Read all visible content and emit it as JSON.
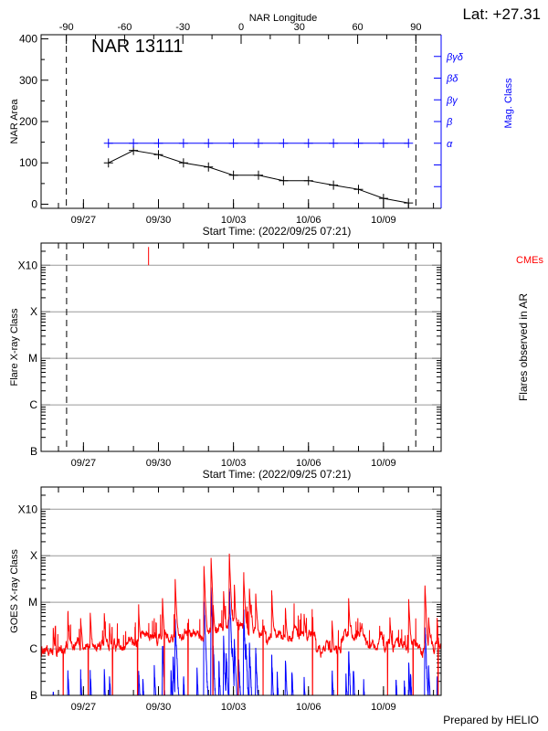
{
  "header": {
    "lat_label": "Lat: +27.31",
    "region_label": "NAR 13111",
    "prepared_by": "Prepared by HELIO"
  },
  "colors": {
    "area": "#000000",
    "mag_class": "#0000ff",
    "goes_long": "#ff0000",
    "goes_short": "#0000ff",
    "cme": "#ff0000",
    "grid": "#999999"
  },
  "chart_data": [
    {
      "type": "line",
      "xlabel": "Start Time: (2022/09/25 07:21)",
      "x_start": "2022-09-25T07:21",
      "x_end": "2022-10-11T07:21",
      "x_tick_labels": [
        "09/27",
        "09/30",
        "10/03",
        "10/06",
        "10/09"
      ],
      "x_tick_dates": [
        "2022-09-27",
        "2022-09-30",
        "2022-10-03",
        "2022-10-06",
        "2022-10-09"
      ],
      "top_xlabel": "NAR Longitude",
      "top_xlim": [
        -103,
        103
      ],
      "top_x_ticks": [
        -90,
        -60,
        -30,
        0,
        30,
        60,
        90
      ],
      "limb_longitudes": [
        -90,
        90
      ],
      "ylabel": "NAR Area",
      "ylim": [
        -10,
        410
      ],
      "y_ticks": [
        0,
        100,
        200,
        300,
        400
      ],
      "y2label": "Mag. Class",
      "y2_tick_labels": [
        "",
        "",
        "α",
        "β",
        "βγ",
        "βδ",
        "βγδ"
      ],
      "y2lim": [
        -1,
        7
      ],
      "series": [
        {
          "x": [
            "2022-09-28",
            "2022-09-29",
            "2022-09-30",
            "2022-10-01",
            "2022-10-02",
            "2022-10-03",
            "2022-10-04",
            "2022-10-05",
            "2022-10-06",
            "2022-10-07",
            "2022-10-08",
            "2022-10-09",
            "2022-10-10"
          ],
          "values": [
            100,
            130,
            120,
            100,
            90,
            70,
            70,
            57,
            57,
            46,
            36,
            14,
            3
          ]
        },
        {
          "axis": "y2",
          "x": [
            "2022-09-28",
            "2022-09-29",
            "2022-09-30",
            "2022-10-01",
            "2022-10-02",
            "2022-10-03",
            "2022-10-04",
            "2022-10-05",
            "2022-10-06",
            "2022-10-07",
            "2022-10-08",
            "2022-10-09",
            "2022-10-10"
          ],
          "values": [
            "α",
            "α",
            "α",
            "α",
            "α",
            "α",
            "α",
            "α",
            "α",
            "α",
            "α",
            "α",
            "α"
          ]
        }
      ]
    },
    {
      "type": "scatter",
      "xlabel": "Start Time: (2022/09/25 07:21)",
      "x_start": "2022-09-25T07:21",
      "x_end": "2022-10-11T07:21",
      "x_tick_labels": [
        "09/27",
        "09/30",
        "10/03",
        "10/06",
        "10/09"
      ],
      "x_tick_dates": [
        "2022-09-27",
        "2022-09-30",
        "2022-10-03",
        "2022-10-06",
        "2022-10-09"
      ],
      "ylabel": "Flare X-ray Class",
      "y2label": "Flares observed in AR",
      "y_scale": "log",
      "ylim": [
        1e-07,
        0.003
      ],
      "y_tick_labels": [
        "B",
        "C",
        "M",
        "X",
        "X10"
      ],
      "y_tick_values": [
        1e-07,
        1e-06,
        1e-05,
        0.0001,
        0.001
      ],
      "grid": true,
      "cme_label": "CMEs",
      "cmes": [
        "2022-09-29T14:30"
      ],
      "limb_times": [
        "2022-09-26T07:50",
        "2022-10-10T07:00"
      ],
      "flares": []
    },
    {
      "type": "line",
      "xlabel": "",
      "x_start": "2022-09-25T07:21",
      "x_end": "2022-10-11T07:21",
      "x_tick_labels": [
        "09/27",
        "09/30",
        "10/03",
        "10/06",
        "10/09"
      ],
      "x_tick_dates": [
        "2022-09-27",
        "2022-09-30",
        "2022-10-03",
        "2022-10-06",
        "2022-10-09"
      ],
      "ylabel": "GOES X-ray Class",
      "y_scale": "log",
      "ylim": [
        1e-07,
        0.003
      ],
      "y_tick_labels": [
        "B",
        "C",
        "M",
        "X",
        "X10"
      ],
      "y_tick_values": [
        1e-07,
        1e-06,
        1e-05,
        0.0001,
        0.001
      ],
      "grid": true,
      "long_channel": {
        "daily_baseline": [
          9e-07,
          1.2e-06,
          1.1e-06,
          1.3e-06,
          2e-06,
          2e-06,
          2e-06,
          3e-06,
          2.8e-06,
          1.6e-06,
          2e-06,
          1e-06,
          2e-06,
          1.3e-06,
          1.2e-06,
          1.1e-06
        ],
        "peaks": [
          [
            "2022-09-25T19:00",
            2e-06
          ],
          [
            "2022-09-26T09:00",
            5e-06
          ],
          [
            "2022-09-26T21:20",
            3.6e-06
          ],
          [
            "2022-09-27T06:30",
            5e-06
          ],
          [
            "2022-09-27T20:00",
            5e-06
          ],
          [
            "2022-09-28T01:00",
            2.5e-06
          ],
          [
            "2022-09-29T05:00",
            5.7e-06
          ],
          [
            "2022-09-30T03:50",
            1.1e-05
          ],
          [
            "2022-09-30T16:00",
            3e-05
          ],
          [
            "2022-10-01T19:40",
            6e-05
          ],
          [
            "2022-10-02T02:30",
            9e-05
          ],
          [
            "2022-10-02T14:30",
            1.5e-05
          ],
          [
            "2022-10-02T20:00",
            0.00011
          ],
          [
            "2022-10-03T00:50",
            2e-05
          ],
          [
            "2022-10-03T09:45",
            4e-05
          ],
          [
            "2022-10-03T15:20",
            1.8e-05
          ],
          [
            "2022-10-03T21:20",
            1.3e-05
          ],
          [
            "2022-10-04T12:40",
            1.7e-05
          ],
          [
            "2022-10-05T01:50",
            6e-06
          ],
          [
            "2022-10-05T19:50",
            3.5e-06
          ],
          [
            "2022-10-06T22:40",
            3.3e-06
          ],
          [
            "2022-10-07T14:30",
            1.05e-05
          ],
          [
            "2022-10-09T06:10",
            3.5e-06
          ],
          [
            "2022-10-10T00:10",
            1.1e-05
          ],
          [
            "2022-10-10T15:45",
            2.5e-05
          ],
          [
            "2022-10-10T19:20",
            3.5e-06
          ],
          [
            "2022-10-11T03:30",
            3.2e-06
          ]
        ],
        "data_gaps": [
          "2022-09-26T04:40",
          "2022-09-27T04:40",
          "2022-09-28T04:00",
          "2022-09-29T04:00",
          "2022-09-30T05:40",
          "2022-10-01T04:30",
          "2022-10-02T04:20",
          "2022-10-03T04:30",
          "2022-10-04T04:30",
          "2022-10-06T04:00",
          "2022-10-07T04:00",
          "2022-10-09T04:00",
          "2022-10-10T04:30",
          "2022-10-11T04:30"
        ]
      },
      "short_channel": {
        "peaks": [
          [
            "2022-09-25T19:00",
            1.3e-07
          ],
          [
            "2022-09-26T09:00",
            4e-07
          ],
          [
            "2022-09-26T21:20",
            3.5e-07
          ],
          [
            "2022-09-27T06:30",
            3.5e-07
          ],
          [
            "2022-09-27T20:00",
            3.5e-07
          ],
          [
            "2022-09-28T01:00",
            3.2e-07
          ],
          [
            "2022-09-29T05:00",
            4e-07
          ],
          [
            "2022-09-29T09:00",
            2.5e-07
          ],
          [
            "2022-09-29T20:00",
            5e-07
          ],
          [
            "2022-09-30T03:50",
            1.9e-06
          ],
          [
            "2022-09-30T12:00",
            4e-07
          ],
          [
            "2022-09-30T14:00",
            1e-06
          ],
          [
            "2022-09-30T16:00",
            7e-06
          ],
          [
            "2022-10-01T00:00",
            3e-07
          ],
          [
            "2022-10-01T13:00",
            4e-07
          ],
          [
            "2022-10-01T19:40",
            1.4e-05
          ],
          [
            "2022-10-02T02:30",
            2.2e-05
          ],
          [
            "2022-10-02T10:00",
            6e-07
          ],
          [
            "2022-10-02T14:30",
            2e-06
          ],
          [
            "2022-10-02T17:00",
            1.2e-06
          ],
          [
            "2022-10-02T20:00",
            2.8e-05
          ],
          [
            "2022-10-02T23:00",
            1e-06
          ],
          [
            "2022-10-03T00:50",
            2e-06
          ],
          [
            "2022-10-03T05:00",
            8e-07
          ],
          [
            "2022-10-03T09:45",
            8e-06
          ],
          [
            "2022-10-03T12:00",
            1.2e-06
          ],
          [
            "2022-10-03T15:20",
            1.5e-06
          ],
          [
            "2022-10-03T21:20",
            1.3e-06
          ],
          [
            "2022-10-04T12:40",
            9e-07
          ],
          [
            "2022-10-04T18:00",
            3e-07
          ],
          [
            "2022-10-05T01:50",
            7e-07
          ],
          [
            "2022-10-05T08:00",
            4e-07
          ],
          [
            "2022-10-05T19:50",
            2.5e-07
          ],
          [
            "2022-10-06T22:40",
            4e-07
          ],
          [
            "2022-10-07T12:00",
            3e-07
          ],
          [
            "2022-10-07T14:30",
            1.2e-06
          ],
          [
            "2022-10-07T19:00",
            5e-07
          ],
          [
            "2022-10-08T05:00",
            2e-07
          ],
          [
            "2022-10-09T12:00",
            3e-07
          ],
          [
            "2022-10-09T20:00",
            2.5e-07
          ],
          [
            "2022-10-10T00:10",
            6e-07
          ],
          [
            "2022-10-10T02:00",
            3e-07
          ],
          [
            "2022-10-10T15:45",
            4.6e-06
          ],
          [
            "2022-10-10T19:20",
            5e-07
          ],
          [
            "2022-10-11T03:30",
            3e-07
          ]
        ]
      }
    }
  ]
}
